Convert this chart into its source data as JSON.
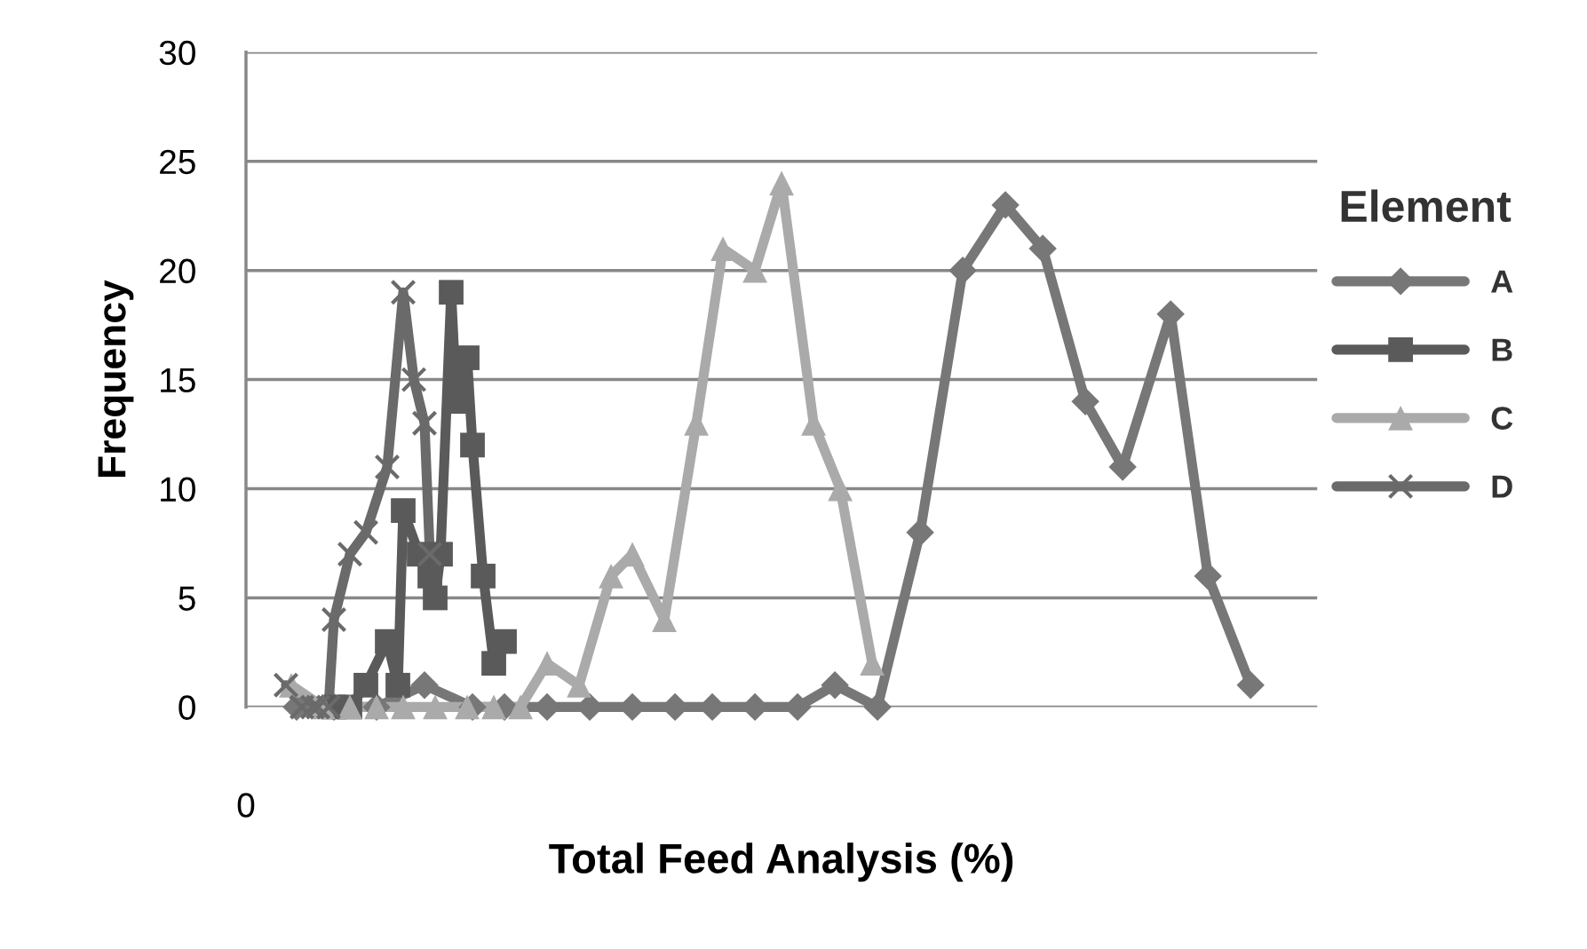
{
  "chart_data": {
    "type": "line",
    "xlabel": "Total Feed Analysis (%)",
    "ylabel": "Frequency",
    "legend_title": "Element",
    "annotations": [
      "0"
    ],
    "ylim": [
      0,
      30
    ],
    "yticks": [
      0,
      5,
      10,
      15,
      20,
      25,
      30
    ],
    "grid": "y",
    "legend": "right",
    "line_style": "solid",
    "categories": [
      null,
      null,
      null,
      null,
      null,
      null,
      null,
      null,
      null,
      null,
      null,
      null,
      null,
      null,
      null,
      null,
      null,
      null,
      null,
      null,
      null,
      null,
      null,
      null,
      null,
      null,
      null,
      null,
      null,
      null,
      null,
      null,
      null,
      null,
      null,
      null,
      null,
      null,
      null,
      null,
      null,
      null,
      null,
      null,
      null,
      null,
      null,
      null,
      null,
      null,
      null,
      null,
      null,
      null,
      null,
      null,
      null,
      null,
      null,
      null,
      null,
      null,
      null,
      null,
      null,
      null,
      null,
      null,
      null,
      null,
      null,
      null,
      null,
      null,
      null,
      null,
      null,
      null,
      null,
      null,
      null,
      null,
      null,
      null,
      null,
      null,
      null,
      null,
      null,
      null,
      null,
      null,
      null,
      null,
      null,
      null,
      null,
      null,
      null,
      null,
      null,
      null,
      null,
      null,
      null,
      null,
      null,
      null,
      null,
      null,
      null,
      null,
      null,
      null,
      null,
      null,
      null,
      null,
      null,
      null,
      null,
      null,
      null,
      null,
      null,
      null,
      null,
      null,
      null,
      null,
      null,
      null,
      null,
      null,
      null,
      null,
      null,
      null,
      null,
      null,
      null,
      null,
      null,
      null,
      null,
      null,
      null,
      null,
      null,
      null,
      null,
      null,
      null,
      null,
      null,
      null,
      null,
      null,
      null,
      null,
      null,
      null,
      null,
      null,
      null,
      null,
      null,
      null,
      null,
      null,
      null,
      null,
      null,
      null,
      null,
      null,
      null,
      null,
      null,
      null,
      null,
      null,
      null,
      null,
      null,
      null,
      null,
      null,
      null,
      null,
      null,
      null,
      null,
      null,
      null,
      null,
      null,
      null,
      null,
      null,
      null
    ],
    "series": [
      {
        "name": "A",
        "color": "#777777",
        "marker": "diamond",
        "values": [
          null,
          null,
          null,
          null,
          null,
          null,
          null,
          null,
          null,
          0,
          null,
          null,
          null,
          null,
          null,
          null,
          0,
          null,
          null,
          null,
          null,
          null,
          null,
          null,
          0,
          null,
          null,
          null,
          null,
          null,
          null,
          null,
          null,
          1,
          null,
          null,
          null,
          null,
          null,
          null,
          null,
          null,
          0,
          null,
          null,
          null,
          null,
          null,
          0,
          null,
          null,
          null,
          null,
          null,
          null,
          null,
          0,
          null,
          null,
          null,
          null,
          null,
          null,
          null,
          0,
          null,
          null,
          null,
          null,
          null,
          null,
          null,
          0,
          null,
          null,
          null,
          null,
          null,
          null,
          null,
          0,
          null,
          null,
          null,
          null,
          null,
          null,
          0,
          null,
          null,
          null,
          null,
          null,
          null,
          null,
          0,
          null,
          null,
          null,
          null,
          null,
          null,
          null,
          0,
          null,
          null,
          null,
          null,
          null,
          null,
          1,
          null,
          null,
          null,
          null,
          null,
          null,
          null,
          0,
          null,
          null,
          null,
          null,
          null,
          null,
          null,
          8,
          null,
          null,
          null,
          null,
          null,
          null,
          null,
          20,
          null,
          null,
          null,
          null,
          null,
          null,
          null,
          23,
          null,
          null,
          null,
          null,
          null,
          null,
          21,
          null,
          null,
          null,
          null,
          null,
          null,
          null,
          14,
          null,
          null,
          null,
          null,
          null,
          null,
          11,
          null,
          null,
          null,
          null,
          null,
          null,
          null,
          null,
          18,
          null,
          null,
          null,
          null,
          null,
          null,
          6,
          null,
          null,
          null,
          null,
          null,
          null,
          null,
          1,
          null,
          null,
          null,
          null,
          null,
          null,
          null,
          null,
          null,
          null,
          null,
          null
        ]
      },
      {
        "name": "B",
        "color": "#5a5a5a",
        "marker": "square",
        "values": [
          null,
          null,
          null,
          null,
          null,
          null,
          null,
          null,
          null,
          null,
          null,
          null,
          null,
          null,
          null,
          null,
          0,
          null,
          null,
          0,
          null,
          null,
          1,
          null,
          null,
          null,
          3,
          null,
          1,
          9,
          null,
          null,
          7,
          null,
          6,
          5,
          7,
          null,
          19,
          14,
          null,
          16,
          12,
          null,
          6,
          null,
          2,
          null,
          3,
          null,
          null,
          null,
          null,
          null,
          null,
          null,
          null,
          null,
          null,
          null,
          null,
          null,
          null,
          null,
          null,
          null,
          null,
          null,
          null,
          null,
          null,
          null,
          null,
          null,
          null,
          null,
          null,
          null,
          null,
          null,
          null,
          null,
          null,
          null,
          null,
          null,
          null,
          null,
          null,
          null,
          null,
          null,
          null,
          null,
          null,
          null,
          null,
          null,
          null,
          null,
          null,
          null,
          null,
          null,
          null,
          null,
          null,
          null,
          null,
          null,
          null,
          null,
          null,
          null,
          null,
          null,
          null,
          null,
          null,
          null,
          null,
          null,
          null,
          null,
          null,
          null,
          null,
          null,
          null,
          null,
          null,
          null,
          null,
          null,
          null,
          null,
          null,
          null,
          null,
          null,
          null,
          null,
          null,
          null,
          null,
          null,
          null,
          null,
          null,
          null,
          null,
          null,
          null,
          null,
          null,
          null,
          null,
          null,
          null,
          null,
          null,
          null,
          null,
          null,
          null,
          null,
          null,
          null,
          null,
          null,
          null,
          null,
          null,
          null,
          null,
          null,
          null,
          null,
          null,
          null,
          null,
          null,
          null,
          null,
          null,
          null,
          null,
          null,
          null,
          null,
          null,
          null,
          null,
          null,
          null,
          null,
          null,
          null,
          null,
          null,
          null
        ]
      },
      {
        "name": "C",
        "color": "#aaaaaa",
        "marker": "triangle",
        "values": [
          null,
          null,
          null,
          null,
          null,
          null,
          null,
          null,
          1,
          null,
          null,
          null,
          null,
          null,
          0,
          null,
          null,
          null,
          null,
          0,
          null,
          null,
          null,
          null,
          0,
          null,
          null,
          null,
          null,
          0,
          null,
          null,
          null,
          null,
          null,
          0,
          null,
          null,
          null,
          null,
          null,
          0,
          null,
          null,
          null,
          null,
          0,
          null,
          null,
          null,
          null,
          0,
          null,
          null,
          null,
          null,
          2,
          null,
          null,
          null,
          null,
          null,
          1,
          null,
          null,
          null,
          null,
          null,
          6,
          null,
          null,
          null,
          7,
          null,
          null,
          null,
          null,
          null,
          4,
          null,
          null,
          null,
          null,
          null,
          13,
          null,
          null,
          null,
          null,
          21,
          null,
          null,
          null,
          null,
          null,
          20,
          null,
          null,
          null,
          null,
          24,
          null,
          null,
          null,
          null,
          null,
          13,
          null,
          null,
          null,
          null,
          10,
          null,
          null,
          null,
          null,
          null,
          2,
          null,
          null,
          null,
          null,
          null,
          null,
          null,
          null,
          null,
          null,
          null,
          null,
          null,
          null,
          null,
          null,
          null,
          null,
          null,
          null,
          null,
          null,
          null,
          null,
          null,
          null,
          null,
          null,
          null,
          null,
          null,
          null,
          null,
          null,
          null,
          null,
          null,
          null,
          null,
          null,
          null,
          null,
          null,
          null,
          null,
          null,
          null,
          null,
          null,
          null,
          null,
          null,
          null,
          null,
          null,
          null,
          null,
          null,
          null,
          null,
          null,
          null,
          null,
          null,
          null,
          null,
          null,
          null,
          null,
          null,
          null,
          null,
          null,
          null,
          null,
          null,
          null,
          null,
          null,
          null,
          null,
          null,
          null
        ]
      },
      {
        "name": "D",
        "color": "#6a6a6a",
        "marker": "cross",
        "values": [
          null,
          null,
          null,
          null,
          null,
          null,
          null,
          1,
          null,
          null,
          0,
          null,
          0,
          0,
          null,
          0,
          4,
          null,
          null,
          7,
          null,
          null,
          8,
          null,
          null,
          null,
          11,
          null,
          null,
          19,
          null,
          15,
          null,
          13,
          7,
          null,
          null,
          null,
          null,
          null,
          null,
          null,
          null,
          null,
          null,
          null,
          null,
          null,
          null,
          null,
          null,
          null,
          null,
          null,
          null,
          null,
          null,
          null,
          null,
          null,
          null,
          null,
          null,
          null,
          null,
          null,
          null,
          null,
          null,
          null,
          null,
          null,
          null,
          null,
          null,
          null,
          null,
          null,
          null,
          null,
          null,
          null,
          null,
          null,
          null,
          null,
          null,
          null,
          null,
          null,
          null,
          null,
          null,
          null,
          null,
          null,
          null,
          null,
          null,
          null,
          null,
          null,
          null,
          null,
          null,
          null,
          null,
          null,
          null,
          null,
          null,
          null,
          null,
          null,
          null,
          null,
          null,
          null,
          null,
          null,
          null,
          null,
          null,
          null,
          null,
          null,
          null,
          null,
          null,
          null,
          null,
          null,
          null,
          null,
          null,
          null,
          null,
          null,
          null,
          null,
          null,
          null,
          null,
          null,
          null,
          null,
          null,
          null,
          null,
          null,
          null,
          null,
          null,
          null,
          null,
          null,
          null,
          null,
          null,
          null,
          null,
          null,
          null,
          null,
          null,
          null,
          null,
          null,
          null,
          null,
          null,
          null,
          null,
          null,
          null,
          null,
          null,
          null,
          null,
          null,
          null,
          null,
          null,
          null,
          null,
          null,
          null,
          null,
          null,
          null,
          null,
          null,
          null,
          null,
          null,
          null,
          null,
          null,
          null,
          null,
          null
        ]
      }
    ]
  }
}
